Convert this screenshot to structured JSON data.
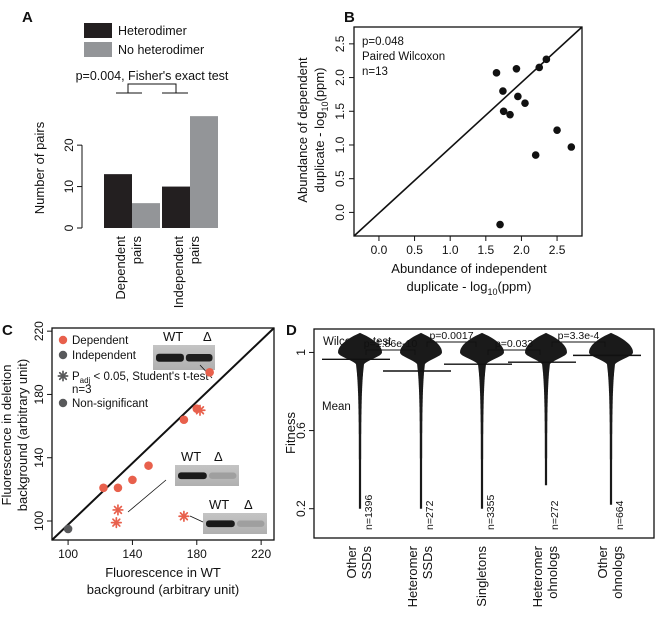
{
  "chart_data": [
    {
      "panel": "A",
      "type": "bar",
      "categories": [
        "Dependent pairs",
        "Independent pairs"
      ],
      "category_lines": [
        [
          "Dependent",
          "pairs"
        ],
        [
          "Independent",
          "pairs"
        ]
      ],
      "series": [
        {
          "name": "Heterodimer",
          "values": [
            13,
            10
          ],
          "color": "#231f20"
        },
        {
          "name": "No heterodimer",
          "values": [
            6,
            27
          ],
          "color": "#939598"
        }
      ],
      "ylabel": "Number of pairs",
      "yticks": [
        0,
        10,
        20
      ],
      "ylim": [
        0,
        28
      ],
      "annotation": "p=0.004, Fisher's exact test",
      "legend": "top"
    },
    {
      "panel": "B",
      "type": "scatter",
      "xlabel_lines": [
        "Abundance of independent",
        "duplicate - log",
        "10",
        "(ppm)"
      ],
      "ylabel_lines": [
        "Abundance of dependent",
        "duplicate - log",
        "10",
        "(ppm)"
      ],
      "xticks": [
        "0.0",
        "0.5",
        "1.0",
        "1.5",
        "2.0",
        "2.5"
      ],
      "yticks": [
        "0.0",
        "0.5",
        "1.0",
        "1.5",
        "2.0",
        "2.5"
      ],
      "xlim": [
        -0.35,
        2.85
      ],
      "ylim": [
        -0.35,
        2.75
      ],
      "annotations": [
        "p=0.048",
        "Paired Wilcoxon",
        "n=13"
      ],
      "diagonal": true,
      "points": [
        {
          "x": 1.65,
          "y": 2.07
        },
        {
          "x": 1.93,
          "y": 2.13
        },
        {
          "x": 2.25,
          "y": 2.15
        },
        {
          "x": 2.35,
          "y": 2.27
        },
        {
          "x": 1.74,
          "y": 1.8
        },
        {
          "x": 1.95,
          "y": 1.72
        },
        {
          "x": 2.05,
          "y": 1.62
        },
        {
          "x": 1.75,
          "y": 1.5
        },
        {
          "x": 1.84,
          "y": 1.45
        },
        {
          "x": 2.5,
          "y": 1.22
        },
        {
          "x": 2.7,
          "y": 0.97
        },
        {
          "x": 2.2,
          "y": 0.85
        },
        {
          "x": 1.7,
          "y": -0.18
        }
      ]
    },
    {
      "panel": "C",
      "type": "scatter",
      "xlabel_lines": [
        "Fluorescence in WT",
        "background (arbitrary unit)"
      ],
      "ylabel_lines": [
        "Fluorescence in deletion",
        "background (arbitrary unit)"
      ],
      "xticks": [
        100,
        140,
        180,
        220
      ],
      "yticks": [
        100,
        140,
        180,
        220
      ],
      "xlim": [
        90,
        228
      ],
      "ylim": [
        88,
        222
      ],
      "diagonal": true,
      "legend": [
        {
          "label": "Dependent",
          "color": "#e8604c"
        },
        {
          "label": "Independent",
          "color": "#58595b"
        }
      ],
      "legend2": {
        "line1_pre": "P",
        "line1_sub": "adj",
        "line1_post": " < 0.05, Student's t-test",
        "line2": "n=3",
        "nonsig": "Non-significant"
      },
      "gel_labels": {
        "wt": "WT",
        "delta": "Δ"
      },
      "points": [
        {
          "x": 100,
          "y": 95,
          "group": "Independent",
          "sig": false
        },
        {
          "x": 122,
          "y": 121,
          "group": "Dependent",
          "sig": false
        },
        {
          "x": 131,
          "y": 121,
          "group": "Dependent",
          "sig": false
        },
        {
          "x": 140,
          "y": 126,
          "group": "Dependent",
          "sig": false
        },
        {
          "x": 150,
          "y": 135,
          "group": "Dependent",
          "sig": false
        },
        {
          "x": 172,
          "y": 164,
          "group": "Dependent",
          "sig": false
        },
        {
          "x": 180,
          "y": 171,
          "group": "Dependent",
          "sig": false
        },
        {
          "x": 188,
          "y": 194,
          "group": "Dependent",
          "sig": false
        },
        {
          "x": 182,
          "y": 170,
          "group": "Dependent",
          "sig": true
        },
        {
          "x": 131,
          "y": 107,
          "group": "Dependent",
          "sig": true
        },
        {
          "x": 130,
          "y": 99,
          "group": "Dependent",
          "sig": true
        },
        {
          "x": 172,
          "y": 103,
          "group": "Dependent",
          "sig": true
        }
      ]
    },
    {
      "panel": "D",
      "type": "violin",
      "ylabel": "Fitness",
      "yticks": [
        "0.2",
        "0.6",
        "1"
      ],
      "ylim": [
        0.05,
        1.12
      ],
      "test_label": "Wilcoxon test",
      "mean_label": "Mean",
      "categories": [
        {
          "lines": [
            "Other",
            "SSDs"
          ],
          "n": "n=1396",
          "mean": 0.965
        },
        {
          "lines": [
            "Heteromer",
            "SSDs"
          ],
          "n": "n=272",
          "mean": 0.905
        },
        {
          "lines": [
            "Singletons"
          ],
          "n": "n=3355",
          "mean": 0.94
        },
        {
          "lines": [
            "Heteromer",
            "ohnologs"
          ],
          "n": "n=272",
          "mean": 0.95
        },
        {
          "lines": [
            "Other",
            "ohnologs"
          ],
          "n": "n=664",
          "mean": 0.985
        }
      ],
      "comparisons": [
        {
          "from": 0,
          "to": 1,
          "p": "p=1.86e-10"
        },
        {
          "from": 1,
          "to": 2,
          "p": "p=0.0017"
        },
        {
          "from": 2,
          "to": 3,
          "p": "p=0.033"
        },
        {
          "from": 3,
          "to": 4,
          "p": "p=3.3e-4"
        }
      ]
    }
  ]
}
